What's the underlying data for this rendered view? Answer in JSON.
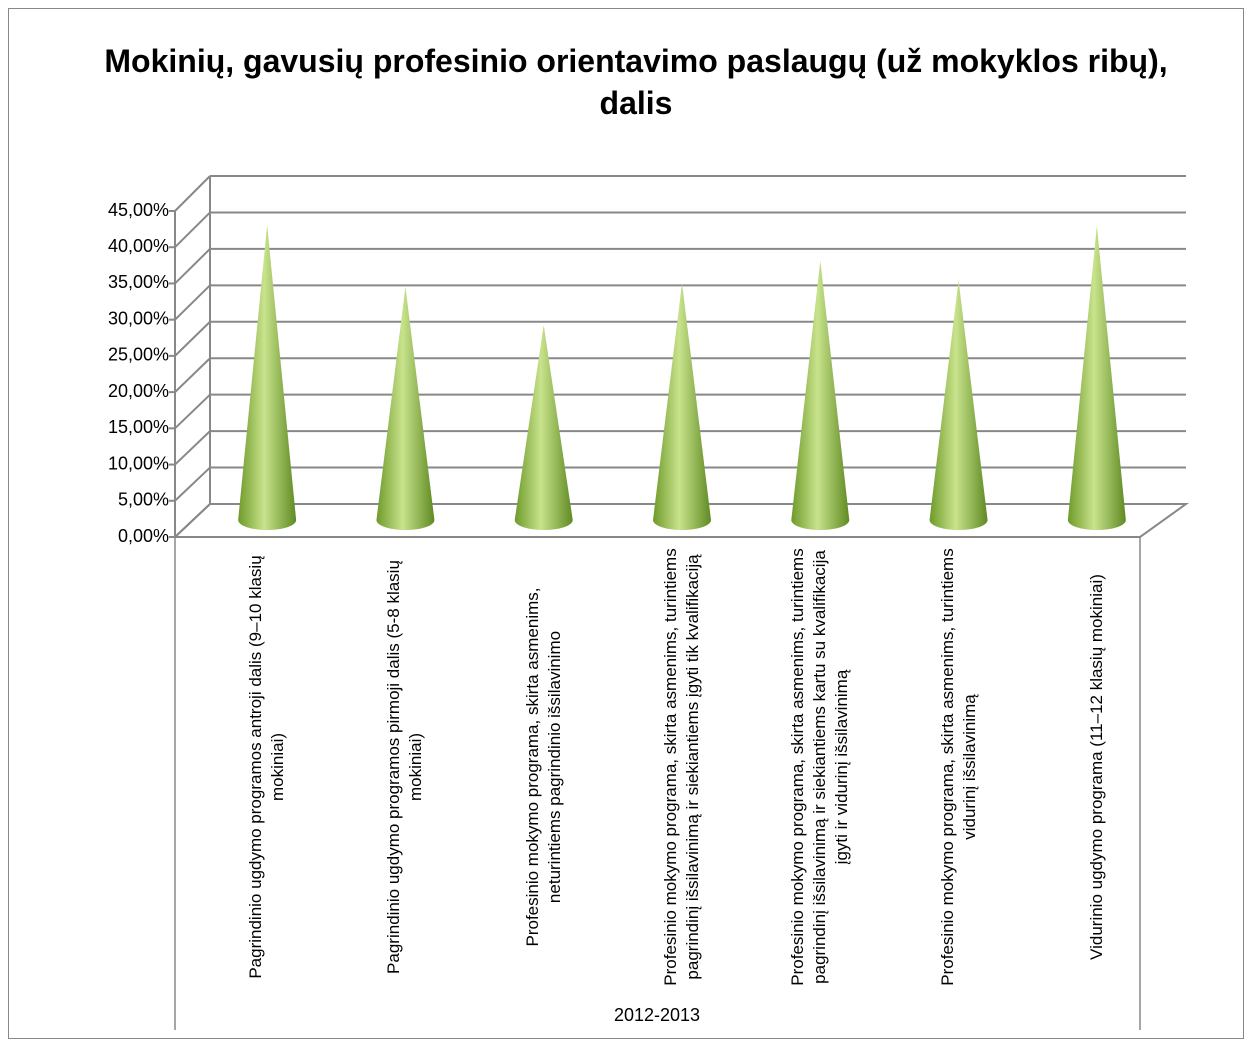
{
  "chart_data": {
    "type": "cone",
    "title": "Mokinių, gavusių profesinio orientavimo paslaugų (už mokyklos ribų), dalis",
    "categories": [
      "Pagrindinio ugdymo programos antroji dalis (9–10 klasių mokiniai)",
      "Pagrindinio ugdymo programos pirmoji dalis (5-8 klasių mokiniai)",
      "Profesinio mokymo programa, skirta asmenims, neturintiems pagrindinio išsilavinimo",
      "Profesinio mokymo programa, skirta asmenims, turintiems pagrindinį išsilavinimą ir siekiantiems įgyti tik kvalifikaciją",
      "Profesinio mokymo programa, skirta asmenims, turintiems pagrindinį išsilavinimą ir siekiantiems kartu su kvalifikacija įgyti ir vidurinį išsilavinimą",
      "Profesinio mokymo programa, skirta asmenims, turintiems vidurinį išsilavinimą",
      "Vidurinio ugdymo programa (11–12 klasių mokiniai)"
    ],
    "x_group": "2012-2013",
    "values": [
      40.7,
      32.2,
      26.9,
      32.7,
      35.8,
      33.1,
      40.6
    ],
    "color": "#9bc34c",
    "ylim": [
      0,
      45
    ],
    "yticks": [
      {
        "value": 0,
        "label": "0,00%"
      },
      {
        "value": 5,
        "label": "5,00%"
      },
      {
        "value": 10,
        "label": "10,00%"
      },
      {
        "value": 15,
        "label": "15,00%"
      },
      {
        "value": 20,
        "label": "20,00%"
      },
      {
        "value": 25,
        "label": "25,00%"
      },
      {
        "value": 30,
        "label": "30,00%"
      },
      {
        "value": 35,
        "label": "35,00%"
      },
      {
        "value": 40,
        "label": "40,00%"
      },
      {
        "value": 45,
        "label": "45,00%"
      }
    ],
    "grid": true
  }
}
